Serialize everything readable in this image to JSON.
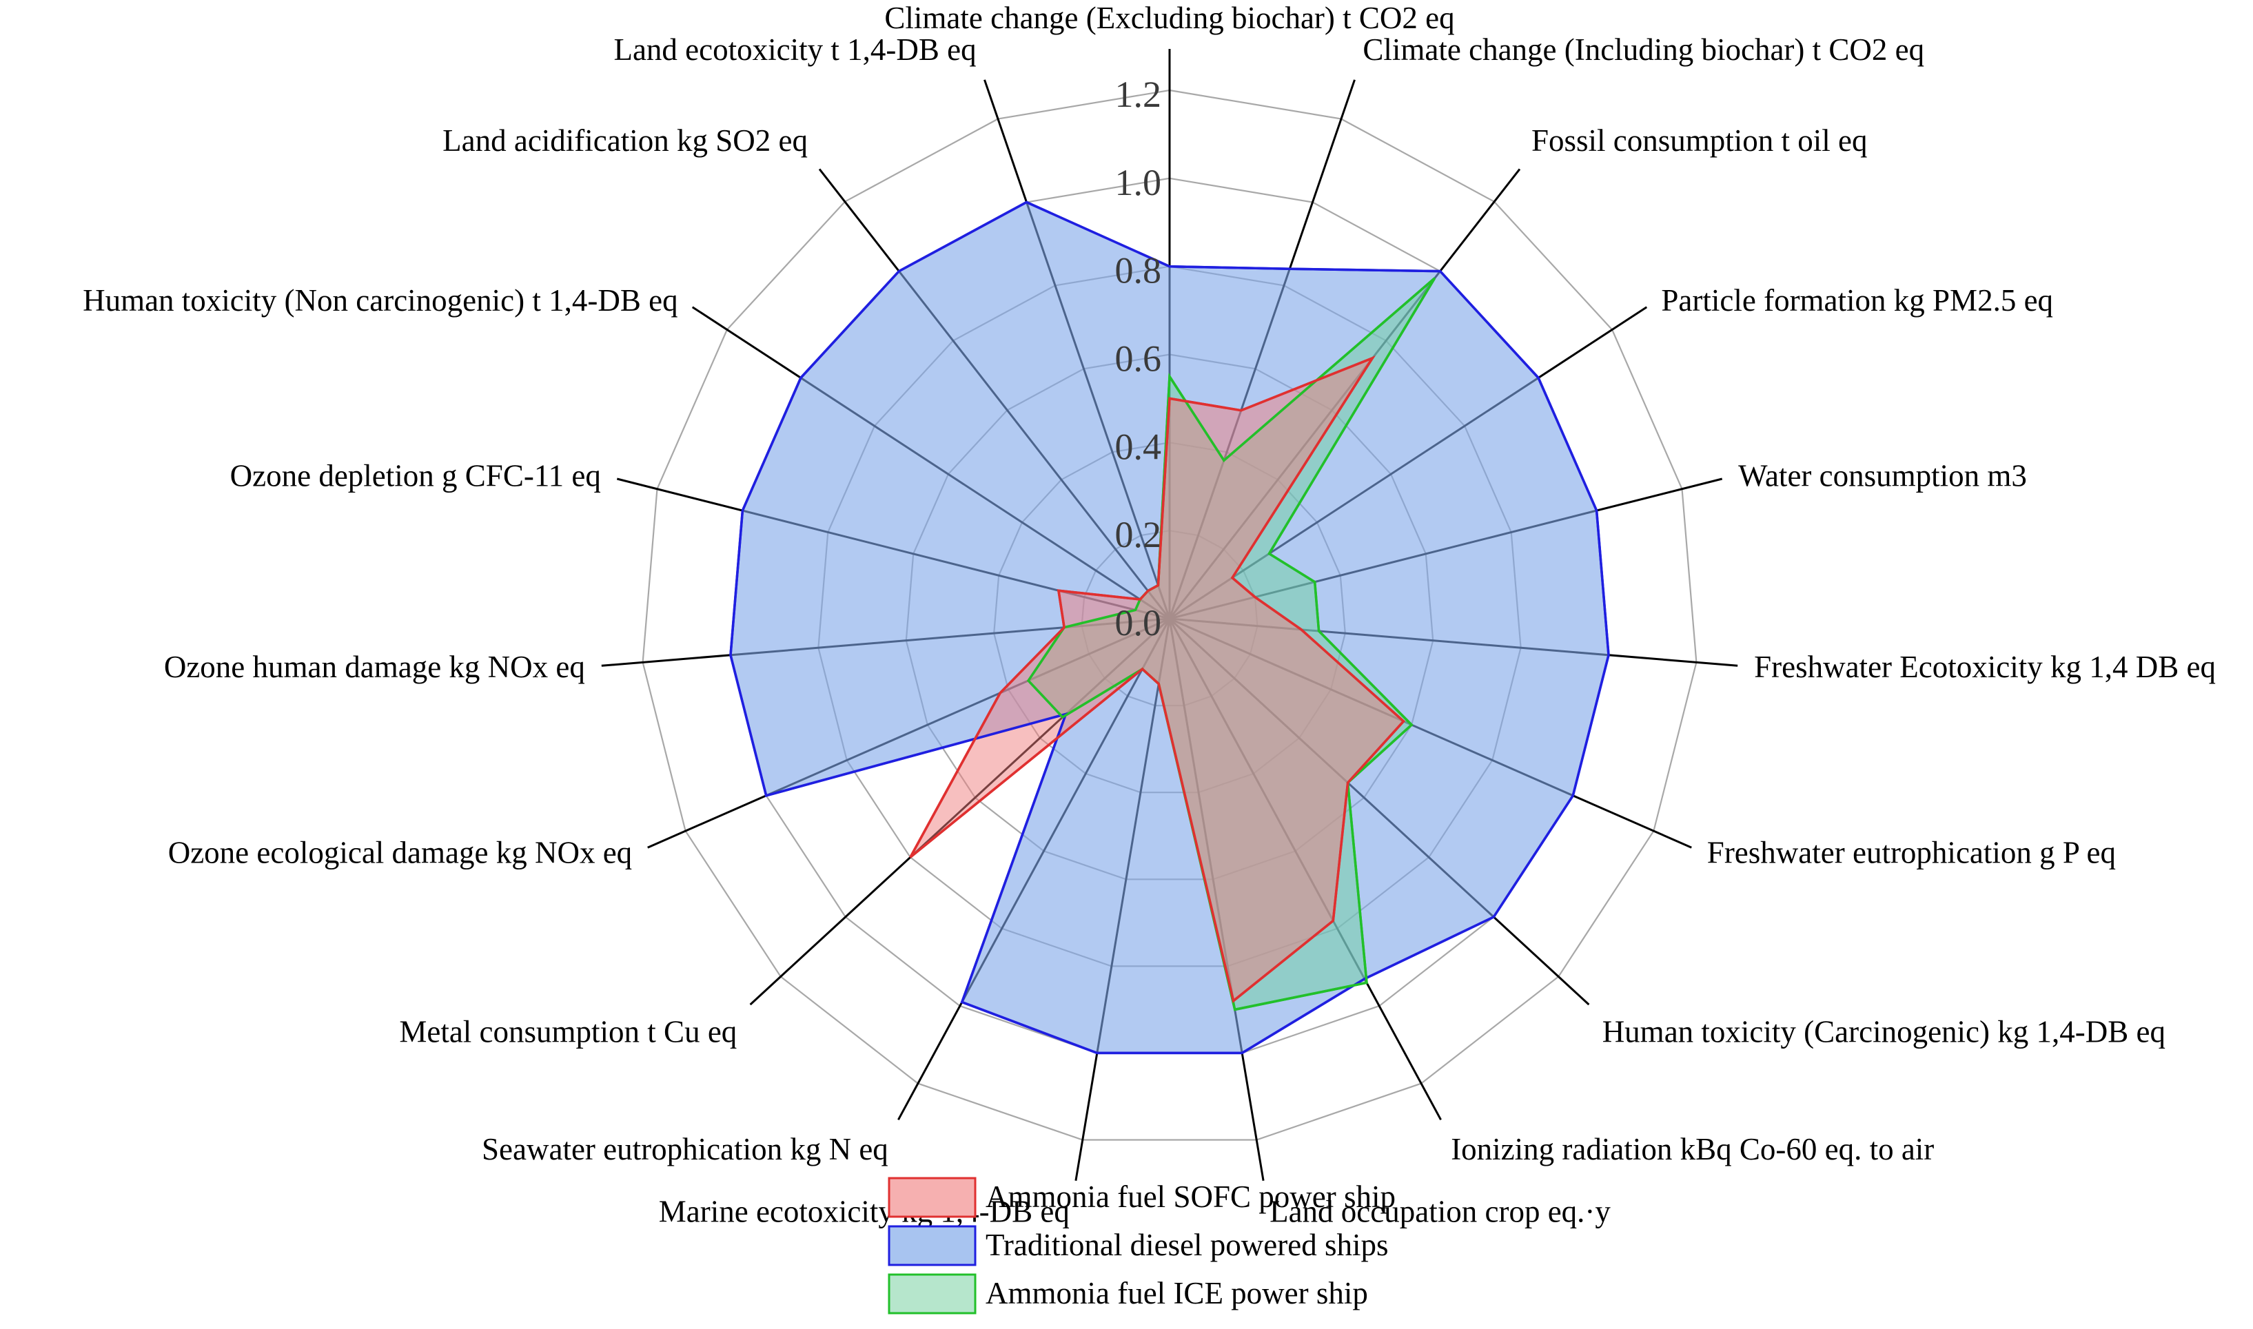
{
  "chart_data": {
    "type": "radar",
    "title": "",
    "radial_ticks": [
      "0.0",
      "0.2",
      "0.4",
      "0.6",
      "0.8",
      "1.0",
      "1.2"
    ],
    "radial_range": [
      0,
      1.2
    ],
    "grid": true,
    "grid_shape": "polygon",
    "legend_position": "bottom",
    "axes": [
      "Climate change (Excluding biochar) t CO2 eq",
      "Climate change (Including biochar) t CO2 eq",
      "Fossil consumption t oil eq",
      "Particle formation kg PM2.5 eq",
      "Water consumption m3",
      "Freshwater Ecotoxicity  kg 1,4 DB eq",
      "Freshwater eutrophication g P eq",
      "Human toxicity (Carcinogenic) kg 1,4-DB eq",
      "Ionizing radiation kBq Co-60 eq. to air",
      "Land occupation crop eq.·y",
      "Marine ecotoxicity kg 1,4-DB eq",
      "Seawater eutrophication kg N eq",
      "Metal consumption t Cu eq",
      "Ozone ecological damage kg NOx eq",
      "Ozone human damage kg NOx eq",
      "Ozone depletion g CFC-11 eq",
      "Human toxicity (Non carcinogenic) t 1,4-DB eq",
      "Land acidification kg SO2 eq",
      "Land ecotoxicity t 1,4-DB eq"
    ],
    "series": [
      {
        "name": "Traditional diesel powered ships",
        "stroke": "#1f1fe0",
        "fill": "#7fa6ea",
        "fill_opacity": 0.6,
        "values": [
          0.8,
          0.84,
          1.0,
          1.0,
          1.0,
          1.0,
          1.0,
          1.0,
          0.93,
          1.0,
          1.0,
          0.99,
          0.32,
          1.0,
          1.0,
          1.0,
          1.0,
          1.0,
          1.0
        ]
      },
      {
        "name": "Ammonia fuel ICE power ship",
        "stroke": "#22c02a",
        "fill": "#6fcfa0",
        "fill_opacity": 0.5,
        "values": [
          0.55,
          0.38,
          0.98,
          0.27,
          0.34,
          0.34,
          0.6,
          0.55,
          0.94,
          0.9,
          0.15,
          0.13,
          0.33,
          0.35,
          0.24,
          0.08,
          0.08,
          0.08,
          0.08
        ]
      },
      {
        "name": "Ammonia fuel SOFC power ship",
        "stroke": "#e03030",
        "fill": "#f08080",
        "fill_opacity": 0.5,
        "values": [
          0.5,
          0.5,
          0.75,
          0.17,
          0.2,
          0.3,
          0.58,
          0.55,
          0.78,
          0.88,
          0.15,
          0.13,
          0.8,
          0.42,
          0.24,
          0.26,
          0.08,
          0.08,
          0.08
        ]
      }
    ],
    "legend": [
      {
        "label": "Ammonia fuel SOFC power ship",
        "fill": "#f6b0b0",
        "stroke": "#e03030"
      },
      {
        "label": "Traditional diesel powered ships",
        "fill": "#a8c4f0",
        "stroke": "#1f1fe0"
      },
      {
        "label": "Ammonia fuel ICE power ship",
        "fill": "#b6e6cc",
        "stroke": "#22c02a"
      }
    ]
  }
}
